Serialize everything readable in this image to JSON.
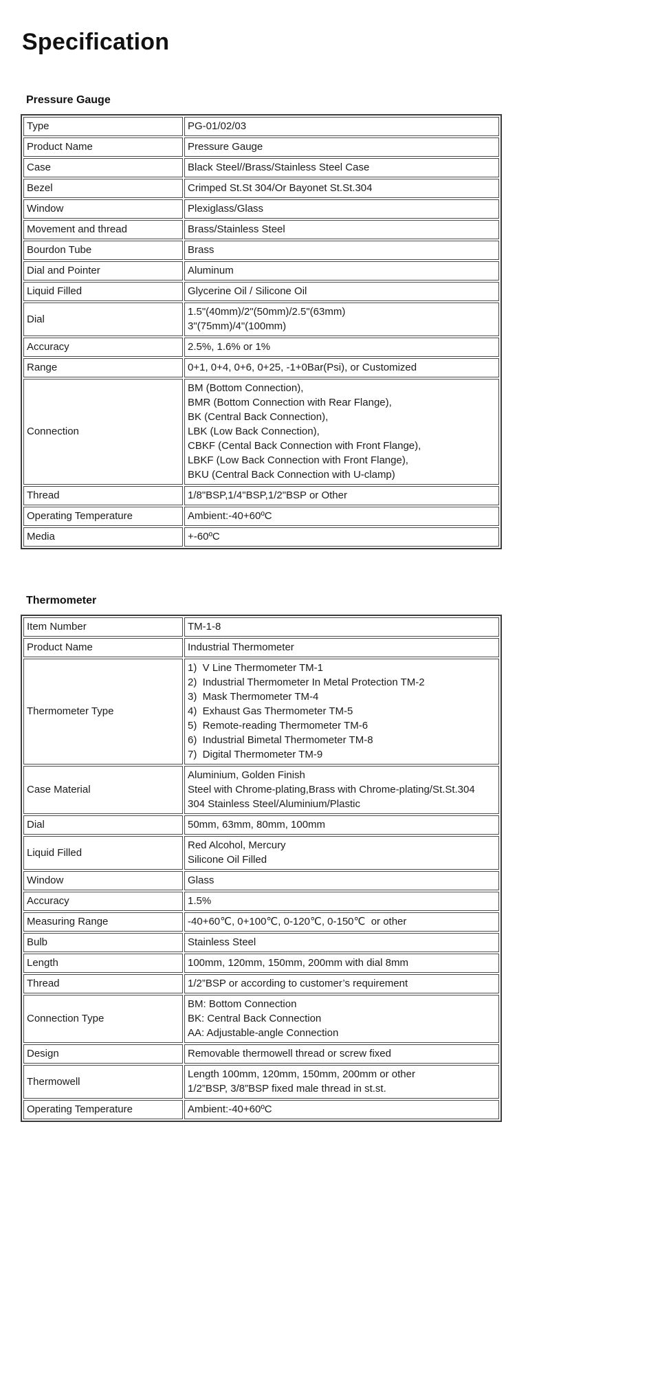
{
  "page": {
    "title": "Specification"
  },
  "sections": [
    {
      "heading": "Pressure Gauge",
      "rows": [
        {
          "label": "Type",
          "value": "PG-01/02/03"
        },
        {
          "label": "Product Name",
          "value": "Pressure Gauge"
        },
        {
          "label": "Case",
          "value": "Black Steel//Brass/Stainless Steel Case"
        },
        {
          "label": "Bezel",
          "value": "Crimped St.St 304/Or Bayonet St.St.304"
        },
        {
          "label": "Window",
          "value": "Plexiglass/Glass"
        },
        {
          "label": "Movement and thread",
          "value": "Brass/Stainless Steel"
        },
        {
          "label": "Bourdon Tube",
          "value": "Brass"
        },
        {
          "label": "Dial and Pointer",
          "value": "Aluminum"
        },
        {
          "label": "Liquid Filled",
          "value": "Glycerine Oil / Silicone Oil"
        },
        {
          "label": "Dial",
          "value": [
            "1.5\"(40mm)/2\"(50mm)/2.5\"(63mm)",
            "3\"(75mm)/4\"(100mm)"
          ]
        },
        {
          "label": "Accuracy",
          "value": "2.5%, 1.6% or 1%"
        },
        {
          "label": "Range",
          "value": "0+1, 0+4, 0+6, 0+25, -1+0Bar(Psi), or Customized"
        },
        {
          "label": "Connection",
          "value": [
            "BM (Bottom Connection),",
            "BMR (Bottom Connection with Rear Flange),",
            "BK (Central Back Connection),",
            "LBK (Low Back Connection),",
            "CBKF (Cental Back Connection with Front Flange),",
            "LBKF (Low Back Connection with Front Flange),",
            "BKU (Central Back Connection with U-clamp)"
          ]
        },
        {
          "label": "Thread",
          "value": "1/8\"BSP,1/4\"BSP,1/2\"BSP or Other"
        },
        {
          "label": "Operating Temperature",
          "value": "Ambient:-40+60ºC"
        },
        {
          "label": "Media",
          "value": "+-60ºC"
        }
      ]
    },
    {
      "heading": "Thermometer",
      "rows": [
        {
          "label": "Item Number",
          "value": "TM-1-8"
        },
        {
          "label": "Product Name",
          "value": "Industrial Thermometer"
        },
        {
          "label": "Thermometer Type",
          "value": [
            "1)  V Line Thermometer TM-1",
            "2)  Industrial Thermometer In Metal Protection TM-2",
            "3)  Mask Thermometer TM-4",
            "4)  Exhaust Gas Thermometer TM-5",
            "5)  Remote-reading Thermometer TM-6",
            "6)  Industrial Bimetal Thermometer TM-8",
            "7)  Digital Thermometer TM-9"
          ]
        },
        {
          "label": "Case Material",
          "value": [
            "Aluminium, Golden Finish",
            "Steel with Chrome-plating,Brass with Chrome-plating/St.St.304",
            "304 Stainless Steel/Aluminium/Plastic"
          ]
        },
        {
          "label": "Dial",
          "value": "50mm, 63mm, 80mm, 100mm"
        },
        {
          "label": "Liquid Filled",
          "value": [
            "Red Alcohol, Mercury",
            "Silicone Oil Filled"
          ]
        },
        {
          "label": "Window",
          "value": "Glass"
        },
        {
          "label": "Accuracy",
          "value": "1.5%"
        },
        {
          "label": "Measuring Range",
          "value": "-40+60℃, 0+100℃, 0-120℃, 0-150℃  or other"
        },
        {
          "label": "Bulb",
          "value": "Stainless Steel"
        },
        {
          "label": "Length",
          "value": "100mm, 120mm, 150mm, 200mm with dial 8mm"
        },
        {
          "label": "Thread",
          "value": "1/2”BSP or according to customer’s requirement"
        },
        {
          "label": "Connection Type",
          "value": [
            "BM: Bottom Connection",
            "BK: Central Back Connection",
            "AA: Adjustable-angle Connection"
          ]
        },
        {
          "label": "Design",
          "value": "Removable thermowell thread or screw fixed"
        },
        {
          "label": "Thermowell",
          "value": [
            "Length 100mm, 120mm, 150mm, 200mm or other",
            "1/2”BSP, 3/8”BSP fixed male thread in st.st."
          ]
        },
        {
          "label": "Operating Temperature",
          "value": "Ambient:-40+60ºC"
        }
      ]
    }
  ]
}
